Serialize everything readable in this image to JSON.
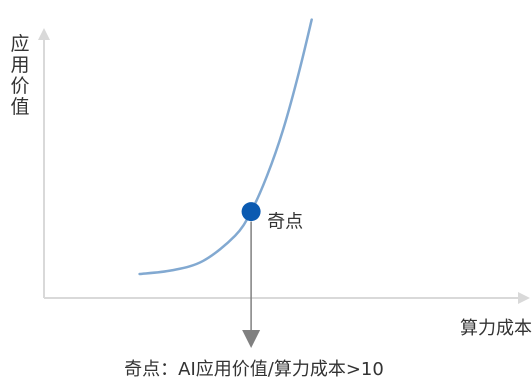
{
  "chart_data": {
    "type": "line",
    "title": "",
    "xlabel": "算力成本",
    "ylabel": "应用价值",
    "grid": false,
    "legend": "none",
    "series": [
      {
        "x": [
          0.0,
          1.0,
          2.0,
          3.0,
          3.5,
          4.0,
          4.5,
          5.0,
          5.4
        ],
        "y": [
          1.0,
          1.15,
          1.55,
          2.6,
          3.6,
          5.1,
          7.0,
          9.4,
          11.6
        ]
      }
    ],
    "xlim": [
      -3.0,
      12.0
    ],
    "ylim": [
      0.0,
      12.0
    ],
    "singular_point": {
      "x": 3.5,
      "y": 3.6,
      "label": "奇点"
    },
    "footnote": "奇点：AI应用价值/算力成本>10",
    "colors": {
      "axis": "#d9d9d9",
      "curve": "#82a9d1",
      "point": "#0b5ab1",
      "drop_line": "#808080",
      "text": "#333333"
    }
  }
}
